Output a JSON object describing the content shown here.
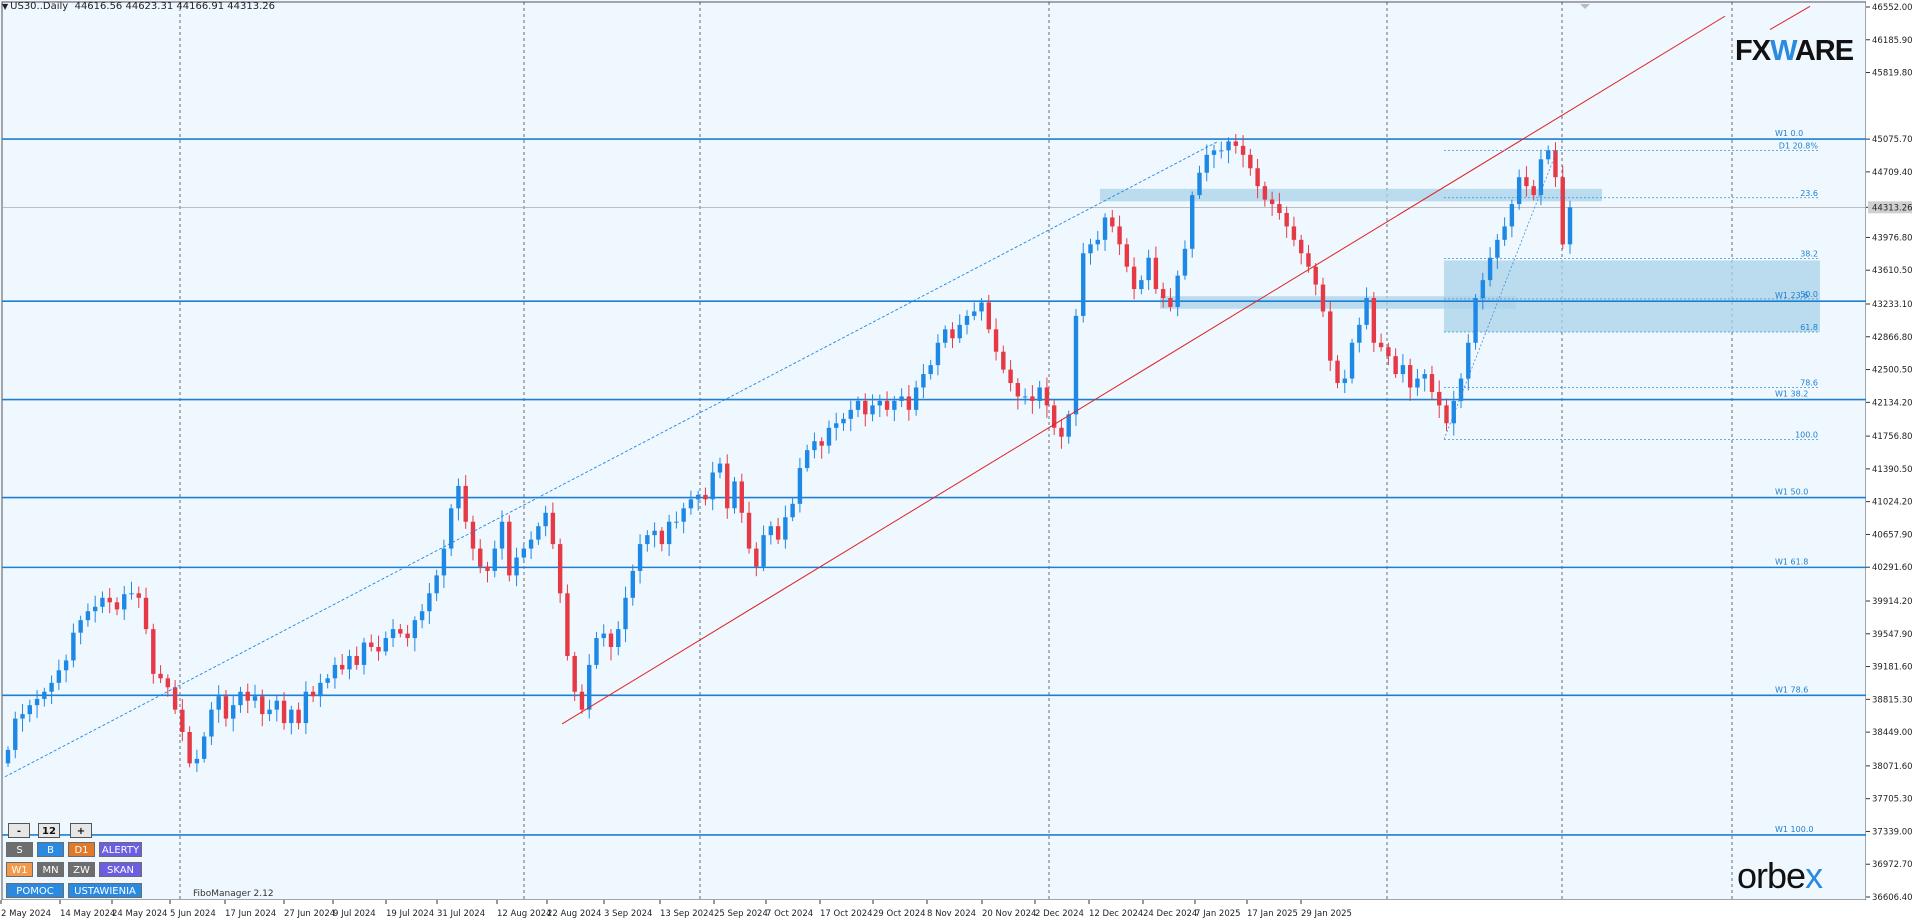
{
  "header": {
    "symbol_info": "US30..Daily",
    "ohlc": "44616.56 44623.31 44166.91 44313.26"
  },
  "price_axis": {
    "labels": [
      "46552.00",
      "46185.90",
      "45819.80",
      "45075.70",
      "44709.40",
      "44313.26",
      "43976.80",
      "43610.50",
      "43233.10",
      "42866.80",
      "42500.50",
      "42134.20",
      "41756.80",
      "41390.50",
      "41024.20",
      "40657.90",
      "40291.60",
      "39914.20",
      "39547.90",
      "39181.60",
      "38815.30",
      "38449.00",
      "38071.60",
      "37705.30",
      "37339.00",
      "36972.70",
      "36606.40"
    ],
    "current_price": "44313.26"
  },
  "time_axis": {
    "labels": [
      "2 May 2024",
      "14 May 2024",
      "24 May 2024",
      "5 Jun 2024",
      "17 Jun 2024",
      "27 Jun 2024",
      "9 Jul 2024",
      "19 Jul 2024",
      "31 Jul 2024",
      "12 Aug 2024",
      "22 Aug 2024",
      "3 Sep 2024",
      "13 Sep 2024",
      "25 Sep 2024",
      "7 Oct 2024",
      "17 Oct 2024",
      "29 Oct 2024",
      "8 Nov 2024",
      "20 Nov 2024",
      "2 Dec 2024",
      "12 Dec 2024",
      "24 Dec 2024",
      "7 Jan 2025",
      "17 Jan 2025",
      "29 Jan 2025"
    ]
  },
  "fibo_labels": {
    "w1_0": "W1 0.0",
    "d1_208": "D1 20.8%",
    "f236": "23.6",
    "f382": "38.2",
    "f500": "50.0",
    "w1_236": "W1 23.6",
    "f618": "61.8",
    "f786": "78.6",
    "w1_382": "W1 38.2",
    "f1000": "100.0",
    "w1_500": "W1 50.0",
    "w1_618": "W1 61.8",
    "w1_786": "W1 78.6",
    "w1_1000": "W1 100.0"
  },
  "toolbar": {
    "minus": "-",
    "period": "12",
    "plus": "+",
    "s": "S",
    "b": "B",
    "d1": "D1",
    "alerty": "ALERTY",
    "w1": "W1",
    "mn": "MN",
    "zw": "ZW",
    "skan": "SKAN",
    "pomoc": "POMOC",
    "ustawienia": "USTAWIENIA"
  },
  "fibo_manager": "FiboManager 2.12",
  "logos": {
    "fxmag_a": "FX",
    "fxmag_w": "W",
    "fxmag_b": "ARE",
    "orbex_a": "orbe",
    "orbex_x": "x"
  },
  "colors": {
    "background": "#f0f8ff",
    "bull": "#1e88e5",
    "bear": "#e53945",
    "level_line": "#1e7fd0",
    "trendline": "#e02020",
    "zone": "#a9d3ea"
  },
  "chart_data": {
    "type": "candlestick",
    "instrument": "US30",
    "timeframe": "Daily",
    "y_range": [
      36606.4,
      46552.0
    ],
    "candles_close": [
      38250,
      38600,
      38650,
      38750,
      38820,
      38900,
      39000,
      39140,
      39250,
      39560,
      39700,
      39800,
      39850,
      39950,
      39900,
      39820,
      39990,
      40000,
      39950,
      39600,
      39100,
      39050,
      38950,
      38700,
      38450,
      38100,
      38150,
      38400,
      38700,
      38850,
      38600,
      38750,
      38900,
      38800,
      38850,
      38650,
      38700,
      38800,
      38550,
      38700,
      38550,
      38900,
      38850,
      39000,
      39050,
      39200,
      39150,
      39300,
      39200,
      39450,
      39400,
      39350,
      39500,
      39600,
      39550,
      39500,
      39700,
      39800,
      40000,
      40200,
      40500,
      40950,
      41200,
      40800,
      40500,
      40300,
      40250,
      40500,
      40800,
      40200,
      40400,
      40500,
      40600,
      40750,
      40900,
      40550,
      40000,
      39300,
      38900,
      38700,
      39200,
      39500,
      39550,
      39400,
      39600,
      39950,
      40250,
      40550,
      40650,
      40700,
      40550,
      40800,
      40800,
      40950,
      41050,
      41100,
      41050,
      41350,
      41450,
      40950,
      41250,
      40900,
      40500,
      40300,
      40650,
      40750,
      40600,
      40850,
      41000,
      41400,
      41600,
      41700,
      41650,
      41850,
      41900,
      41950,
      42050,
      42150,
      42000,
      42100,
      42150,
      42050,
      42150,
      42200,
      42050,
      42300,
      42450,
      42550,
      42800,
      42950,
      42850,
      43000,
      43100,
      43150,
      43250,
      42950,
      42700,
      42500,
      42350,
      42200,
      42200,
      42150,
      42300,
      42100,
      41850,
      41750,
      42000,
      43100,
      43800,
      43900,
      43950,
      44200,
      44100,
      43900,
      43650,
      43400,
      43500,
      43750,
      43400,
      43300,
      43200,
      43550,
      43850,
      44450,
      44700,
      44900,
      44950,
      44950,
      45050,
      45000,
      44900,
      44750,
      44550,
      44400,
      44350,
      44250,
      44100,
      43950,
      43800,
      43650,
      43450,
      43150,
      42600,
      42350,
      42400,
      42800,
      43000,
      43300,
      42800,
      42750,
      42650,
      42450,
      42550,
      42300,
      42400,
      42450,
      42250,
      42100,
      41900,
      42150,
      42400,
      42800,
      43300,
      43500,
      43750,
      43950,
      44100,
      44350,
      44650,
      44550,
      44450,
      44850,
      44950,
      44650,
      43900,
      44313.26
    ],
    "horizontal_levels": [
      45075.7,
      43265,
      42165,
      41070,
      40290,
      38860,
      37300
    ],
    "support_resistance_zones": [
      [
        44380,
        44520
      ],
      [
        43180,
        43320
      ],
      [
        42920,
        43720
      ]
    ],
    "trendline": "rising from Aug 2024 low through Nov 2024 low",
    "fibonacci_levels": [
      "0.0",
      "23.6",
      "38.2",
      "50.0",
      "61.8",
      "78.6",
      "100.0"
    ]
  }
}
